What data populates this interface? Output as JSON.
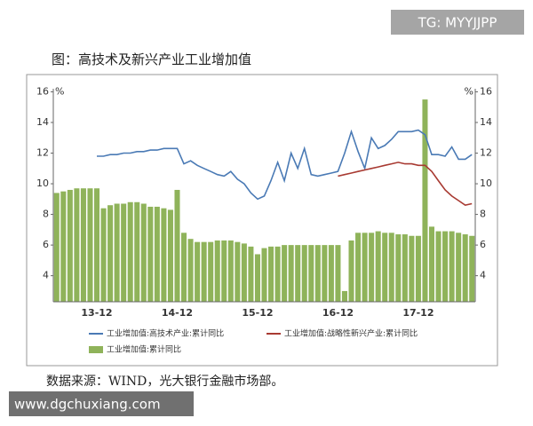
{
  "chart_data": {
    "type": "bar-line",
    "title": "图：高技术及新兴产业工业增加值",
    "categories": [
      null,
      null,
      null,
      null,
      null,
      null,
      "13-12",
      null,
      null,
      null,
      null,
      null,
      null,
      null,
      null,
      null,
      null,
      null,
      "14-12",
      null,
      null,
      null,
      null,
      null,
      null,
      null,
      null,
      null,
      null,
      null,
      "15-12",
      null,
      null,
      null,
      null,
      null,
      null,
      null,
      null,
      null,
      null,
      null,
      "16-12",
      null,
      null,
      null,
      null,
      null,
      null,
      null,
      null,
      null,
      null,
      null,
      "17-12",
      null,
      null,
      null,
      null,
      null,
      null,
      null,
      null
    ],
    "series": [
      {
        "name": "工业增加值:高技术产业:累计同比",
        "color": "#4a7ab5",
        "kind": "line",
        "values": [
          null,
          null,
          null,
          null,
          null,
          null,
          11.8,
          11.8,
          11.9,
          11.9,
          12.0,
          12.0,
          12.1,
          12.1,
          12.2,
          12.2,
          12.3,
          12.3,
          12.3,
          11.3,
          11.5,
          11.2,
          11.0,
          10.8,
          10.6,
          10.5,
          10.8,
          10.3,
          10.0,
          9.4,
          9.0,
          9.2,
          10.2,
          11.4,
          10.2,
          12.0,
          11.0,
          12.3,
          10.6,
          10.5,
          10.6,
          10.7,
          10.8,
          12.0,
          13.4,
          12.1,
          11.0,
          13.0,
          12.3,
          12.5,
          12.9,
          13.4,
          13.4,
          13.4,
          13.5,
          13.2,
          11.9,
          11.9,
          11.8,
          12.4,
          11.6,
          11.6,
          11.9
        ]
      },
      {
        "name": "工业增加值:战略性新兴产业:累计同比",
        "color": "#a83a32",
        "kind": "line",
        "values": [
          null,
          null,
          null,
          null,
          null,
          null,
          null,
          null,
          null,
          null,
          null,
          null,
          null,
          null,
          null,
          null,
          null,
          null,
          null,
          null,
          null,
          null,
          null,
          null,
          null,
          null,
          null,
          null,
          null,
          null,
          null,
          null,
          null,
          null,
          null,
          null,
          null,
          null,
          null,
          null,
          null,
          null,
          10.5,
          10.6,
          10.7,
          10.8,
          10.9,
          11.0,
          11.1,
          11.2,
          11.3,
          11.4,
          11.3,
          11.3,
          11.2,
          11.2,
          10.8,
          10.2,
          9.6,
          9.2,
          8.9,
          8.6,
          8.7
        ]
      },
      {
        "name": "工业增加值:累计同比",
        "color": "#8fb35a",
        "kind": "bar",
        "values": [
          9.4,
          9.5,
          9.6,
          9.7,
          9.7,
          9.7,
          9.7,
          8.4,
          8.6,
          8.7,
          8.7,
          8.8,
          8.8,
          8.7,
          8.5,
          8.5,
          8.4,
          8.3,
          9.6,
          6.8,
          6.4,
          6.2,
          6.2,
          6.2,
          6.3,
          6.3,
          6.3,
          6.2,
          6.1,
          5.9,
          5.4,
          5.8,
          5.9,
          5.9,
          6.0,
          6.0,
          6.0,
          6.0,
          6.0,
          6.0,
          6.0,
          6.0,
          6.0,
          3.0,
          6.3,
          6.8,
          6.8,
          6.8,
          6.9,
          6.8,
          6.8,
          6.7,
          6.7,
          6.6,
          6.6,
          15.5,
          7.2,
          6.9,
          6.9,
          6.9,
          6.8,
          6.7,
          6.6
        ]
      }
    ],
    "ylim": [
      2.3,
      16.2
    ],
    "yticks": [
      4,
      6,
      8,
      10,
      12,
      14,
      16
    ],
    "y2lim": [
      2.3,
      16.2
    ],
    "y2ticks": [
      4,
      6,
      8,
      10,
      12,
      14,
      16
    ],
    "unit_label": "%"
  },
  "source": "数据来源：WIND，光大银行金融市场部。",
  "watermarks": [
    "TG: MYYJJPP",
    "www.dgchuxiang.com"
  ]
}
